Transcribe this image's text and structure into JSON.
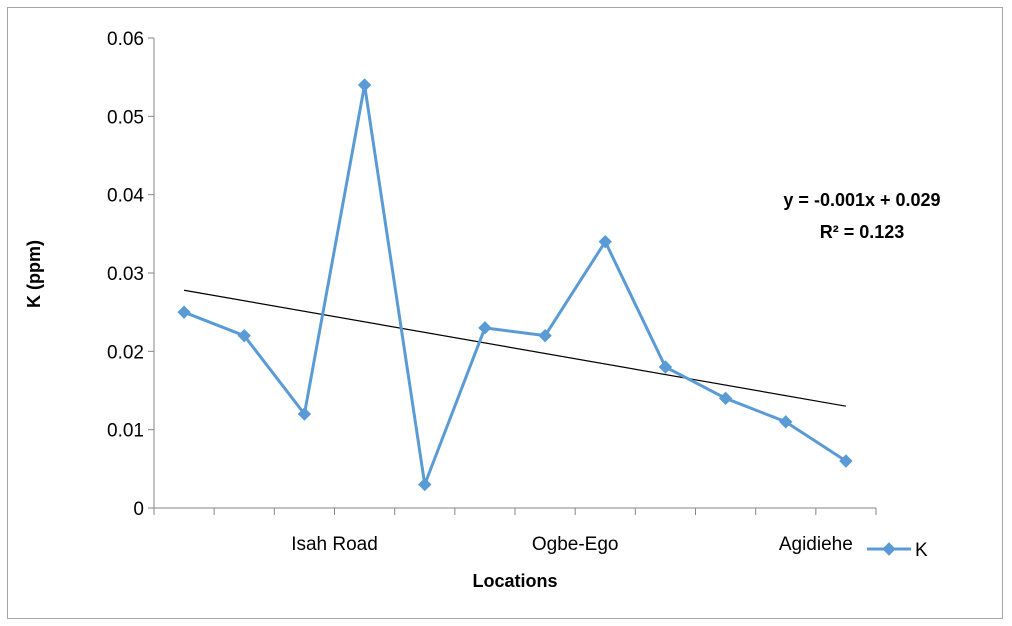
{
  "chart_data": {
    "type": "line",
    "x": [
      1,
      2,
      3,
      4,
      5,
      6,
      7,
      8,
      9,
      10,
      11,
      12
    ],
    "category_labels": [
      "Isah Road",
      "Ogbe-Ego",
      "Agidiehe"
    ],
    "category_label_after_x": [
      4,
      8,
      12
    ],
    "series": [
      {
        "name": "K",
        "color": "#5b9bd5",
        "marker": "diamond",
        "values": [
          0.025,
          0.022,
          0.012,
          0.054,
          0.003,
          0.023,
          0.022,
          0.034,
          0.018,
          0.014,
          0.011,
          0.006
        ]
      }
    ],
    "trendline": {
      "type": "linear",
      "color": "#000000",
      "start_value": 0.0278,
      "end_value": 0.013,
      "equation": "y = -0.001x + 0.029",
      "r_squared": "R² = 0.123"
    },
    "xlabel": "Locations",
    "ylabel": "K (ppm)",
    "ylim": [
      0,
      0.06
    ],
    "yticks": [
      "0",
      "0.01",
      "0.02",
      "0.03",
      "0.04",
      "0.05",
      "0.06"
    ],
    "legend": {
      "position": "right",
      "entries": [
        "K"
      ]
    }
  }
}
